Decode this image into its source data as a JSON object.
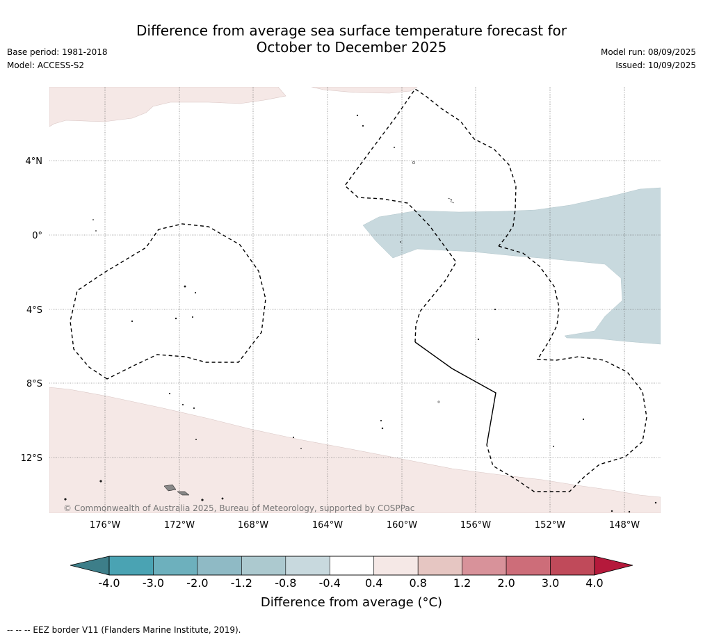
{
  "header": {
    "title_line1": "Difference from average sea surface temperature forecast for",
    "title_line2": "October to December 2025",
    "base_period": "Base period: 1981-2018",
    "model": "Model: ACCESS-S2",
    "model_run": "Model run: 08/09/2025",
    "issued": "Issued: 10/09/2025"
  },
  "map": {
    "lat_labels": [
      "4°N",
      "0°",
      "4°S",
      "8°S",
      "12°S"
    ],
    "lon_labels": [
      "176°W",
      "172°W",
      "168°W",
      "164°W",
      "160°W",
      "156°W",
      "152°W",
      "148°W"
    ],
    "copyright": "© Commonwealth of Australia 2025, Bureau of Meteorology, supported by COSPPac",
    "shading": [
      {
        "name": "north-warm-region",
        "category": "0.4 to 0.8",
        "color": "#f5e8e6"
      },
      {
        "name": "equatorial-cool-region",
        "category": "-0.8 to -0.4",
        "color": "#c8d9de"
      },
      {
        "name": "south-warm-region",
        "category": "0.4 to 0.8",
        "color": "#f5e8e6"
      }
    ]
  },
  "colorbar": {
    "ticks": [
      "-4.0",
      "-3.0",
      "-2.0",
      "-1.2",
      "-0.8",
      "-0.4",
      "0.4",
      "0.8",
      "1.2",
      "2.0",
      "3.0",
      "4.0"
    ],
    "colors": [
      "#4aa3b3",
      "#6db0bd",
      "#8fbac5",
      "#acc9cf",
      "#c8d9de",
      "#ffffff",
      "#f5e8e6",
      "#e6c6c2",
      "#d8929a",
      "#cd6d79",
      "#c04a5a"
    ],
    "under_color": "#3d7e89",
    "over_color": "#b5193b",
    "label": "Difference from average (°C)"
  },
  "footnote": "--  --  -- EEZ border V11 (Flanders Marine Institute, 2019)."
}
